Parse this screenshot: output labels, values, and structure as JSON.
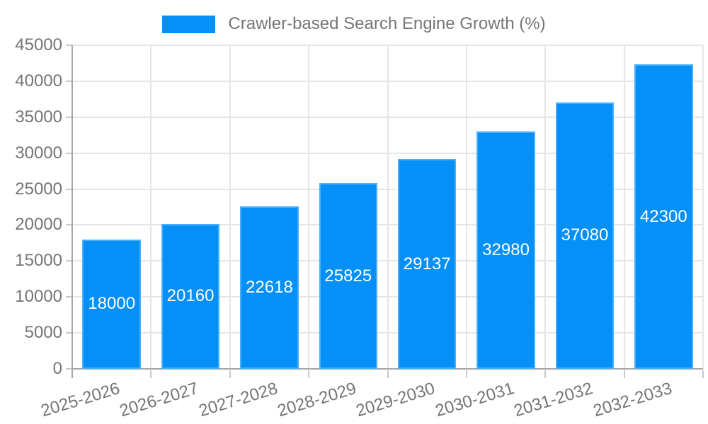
{
  "chart_data": {
    "type": "bar",
    "title": "Crawler-based Search Engine Growth (%)",
    "categories": [
      "2025-2026",
      "2026-2027",
      "2027-2028",
      "2028-2029",
      "2029-2030",
      "2030-2031",
      "2031-2032",
      "2032-2033"
    ],
    "values": [
      18000,
      20160,
      22618,
      25825,
      29137,
      32980,
      37080,
      42300
    ],
    "xlabel": "",
    "ylabel": "",
    "ylim": [
      0,
      45000
    ],
    "ytick_step": 5000,
    "ytick_labels": [
      "0",
      "5000",
      "10000",
      "15000",
      "20000",
      "25000",
      "30000",
      "35000",
      "40000",
      "45000"
    ],
    "grid": true,
    "legend_position": "top",
    "colors": {
      "bar": "#0590f8",
      "bar_value_text": "#ffffff",
      "axis_text": "#757575",
      "grid": "#e6e6e6",
      "axis_line": "#a6a6a6",
      "tick": "#c9c9c9",
      "background": "#ffffff"
    }
  }
}
